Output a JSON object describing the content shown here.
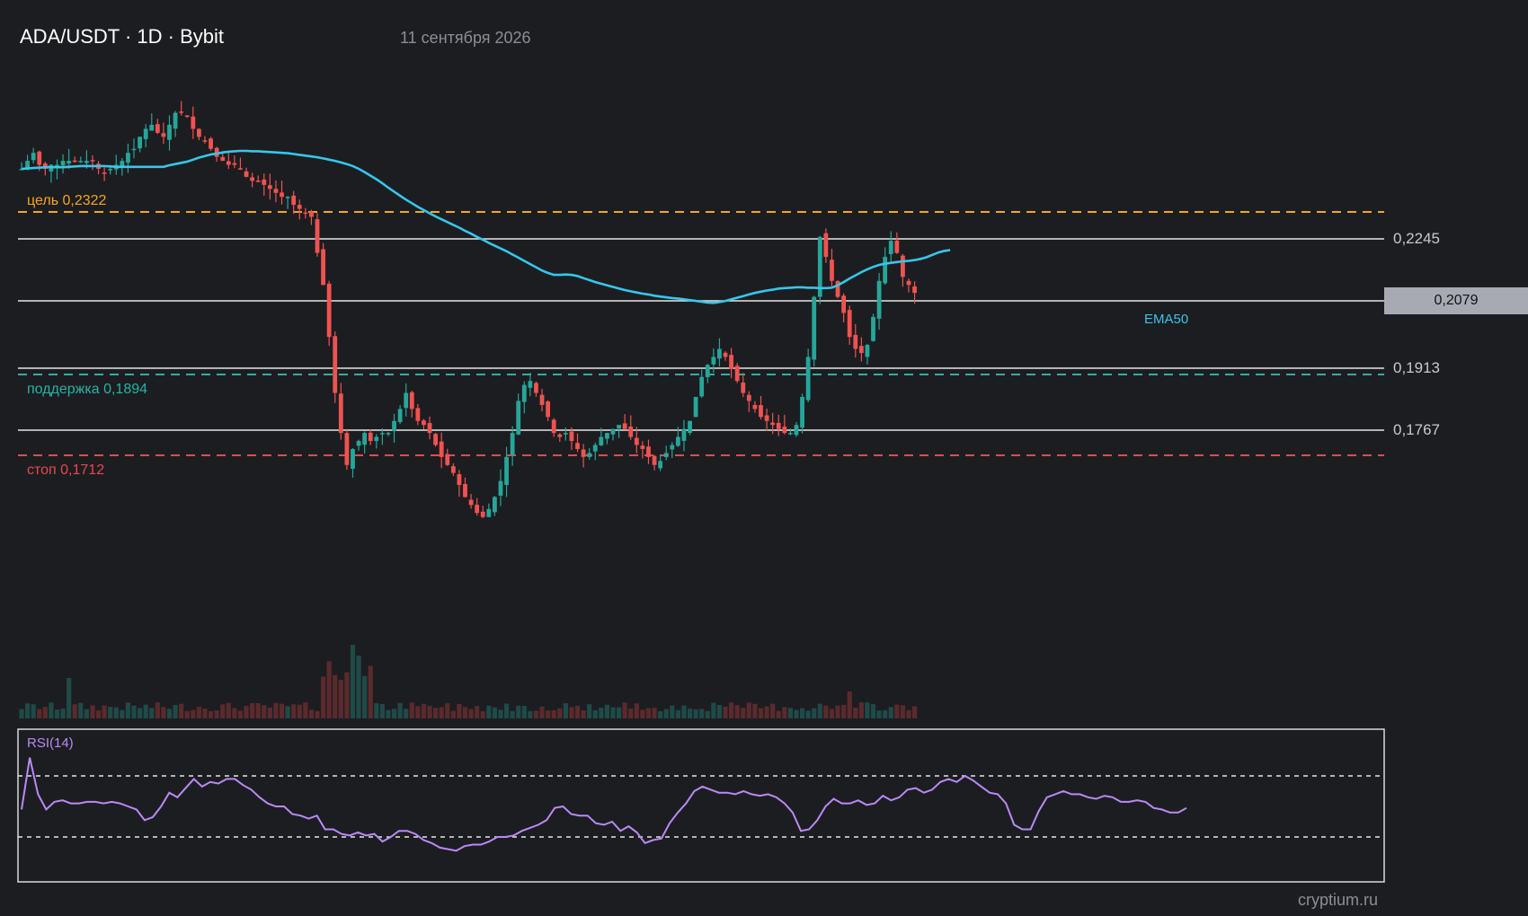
{
  "header": {
    "title": "ADA/USDT · 1D · Bybit",
    "date": "11 сентября 2026"
  },
  "watermark": "cryptium.ru",
  "levels": {
    "target": {
      "label": "цель 0,2322",
      "value": 0.2322,
      "color": "#f5a623"
    },
    "support": {
      "label": "поддержка 0,1894",
      "value": 0.1894,
      "color": "#26b3a5"
    },
    "stop": {
      "label": "стоп 0,1712",
      "value": 0.1712,
      "color": "#e5494f"
    }
  },
  "price_axis": {
    "labels": [
      "0,2245",
      "0,1913",
      "0,1767"
    ],
    "current": "0,2079"
  },
  "indicators": {
    "ema_label": "EMA50",
    "rsi_label": "RSI(14)"
  },
  "colors": {
    "background": "#1c1d21",
    "up": "#26a69a",
    "down": "#ef5350",
    "ema": "#35c7ec",
    "rsi": "#b98af6"
  },
  "chart_data": {
    "type": "candlestick",
    "title": "ADA/USDT · 1D · Bybit",
    "horizontal_lines": [
      0.2245,
      0.2079,
      0.1913,
      0.1767
    ],
    "ylim": [
      0.136,
      0.255
    ],
    "series": [
      {
        "name": "EMA50",
        "values": [
          0.242,
          0.2421,
          0.2422,
          0.2423,
          0.2424,
          0.2424,
          0.2424,
          0.2424,
          0.2425,
          0.2426,
          0.2427,
          0.2427,
          0.2427,
          0.2427,
          0.2427,
          0.2426,
          0.2425,
          0.2425,
          0.2425,
          0.2425,
          0.2425,
          0.2425,
          0.2425,
          0.2425,
          0.2425,
          0.2429,
          0.2432,
          0.2435,
          0.2438,
          0.2443,
          0.2448,
          0.2452,
          0.2456,
          0.2458,
          0.2461,
          0.2463,
          0.2464,
          0.2465,
          0.2465,
          0.2464,
          0.2464,
          0.2463,
          0.2462,
          0.2461,
          0.246,
          0.2459,
          0.2457,
          0.2455,
          0.2453,
          0.2451,
          0.2449,
          0.2446,
          0.2443,
          0.244,
          0.2436,
          0.2432,
          0.2427,
          0.242,
          0.2412,
          0.2403,
          0.2394,
          0.2384,
          0.2373,
          0.2363,
          0.2353,
          0.2343,
          0.2334,
          0.2325,
          0.2317,
          0.2309,
          0.2301,
          0.2294,
          0.2287,
          0.228,
          0.2273,
          0.2265,
          0.2258,
          0.225,
          0.2243,
          0.2235,
          0.2228,
          0.2221,
          0.2214,
          0.2206,
          0.2198,
          0.219,
          0.2182,
          0.2174,
          0.2166,
          0.216,
          0.2155,
          0.2155,
          0.2156,
          0.2155,
          0.2152,
          0.2147,
          0.2142,
          0.2137,
          0.2133,
          0.2129,
          0.2125,
          0.2121,
          0.2117,
          0.2114,
          0.2111,
          0.2108,
          0.2106,
          0.2103,
          0.2101,
          0.2099,
          0.2097,
          0.2096,
          0.2094,
          0.2092,
          0.209,
          0.2088,
          0.2086,
          0.2085,
          0.2087,
          0.209,
          0.2094,
          0.2098,
          0.2102,
          0.2106,
          0.211,
          0.2113,
          0.2116,
          0.2118,
          0.2121,
          0.2122,
          0.2123,
          0.2124,
          0.2124,
          0.2123,
          0.2123,
          0.2122,
          0.2122,
          0.2123,
          0.2129,
          0.2137,
          0.2146,
          0.2154,
          0.2162,
          0.2169,
          0.2175,
          0.218,
          0.2183,
          0.2185,
          0.2187,
          0.2189,
          0.219,
          0.2192,
          0.2195,
          0.2199,
          0.2205,
          0.2211,
          0.2215,
          0.2217
        ]
      },
      {
        "name": "RSI(14)",
        "values": [
          48,
          82,
          58,
          48,
          53,
          54,
          52,
          52,
          53,
          53,
          52,
          53,
          52,
          50,
          48,
          41,
          43,
          50,
          59,
          56,
          62,
          68,
          63,
          66,
          65,
          68,
          68,
          64,
          61,
          56,
          52,
          50,
          50,
          45,
          44,
          42,
          44,
          35,
          35,
          32,
          31,
          33,
          31,
          32,
          27,
          30,
          34,
          34,
          32,
          28,
          26,
          23,
          22,
          21,
          24,
          25,
          25,
          27,
          30,
          30,
          31,
          34,
          36,
          38,
          41,
          49,
          50,
          45,
          44,
          44,
          39,
          38,
          40,
          34,
          37,
          33,
          26,
          28,
          29,
          39,
          46,
          52,
          60,
          63,
          61,
          59,
          59,
          58,
          60,
          58,
          57,
          58,
          56,
          52,
          46,
          34,
          35,
          41,
          50,
          55,
          52,
          52,
          54,
          51,
          52,
          57,
          54,
          56,
          61,
          62,
          59,
          61,
          66,
          68,
          66,
          70,
          67,
          63,
          59,
          58,
          52,
          38,
          35,
          35,
          47,
          56,
          58,
          60,
          58,
          58,
          56,
          55,
          57,
          56,
          53,
          53,
          54,
          53,
          49,
          48,
          46,
          46,
          49
        ]
      }
    ],
    "volume_axis": {
      "unit": "bars"
    }
  }
}
